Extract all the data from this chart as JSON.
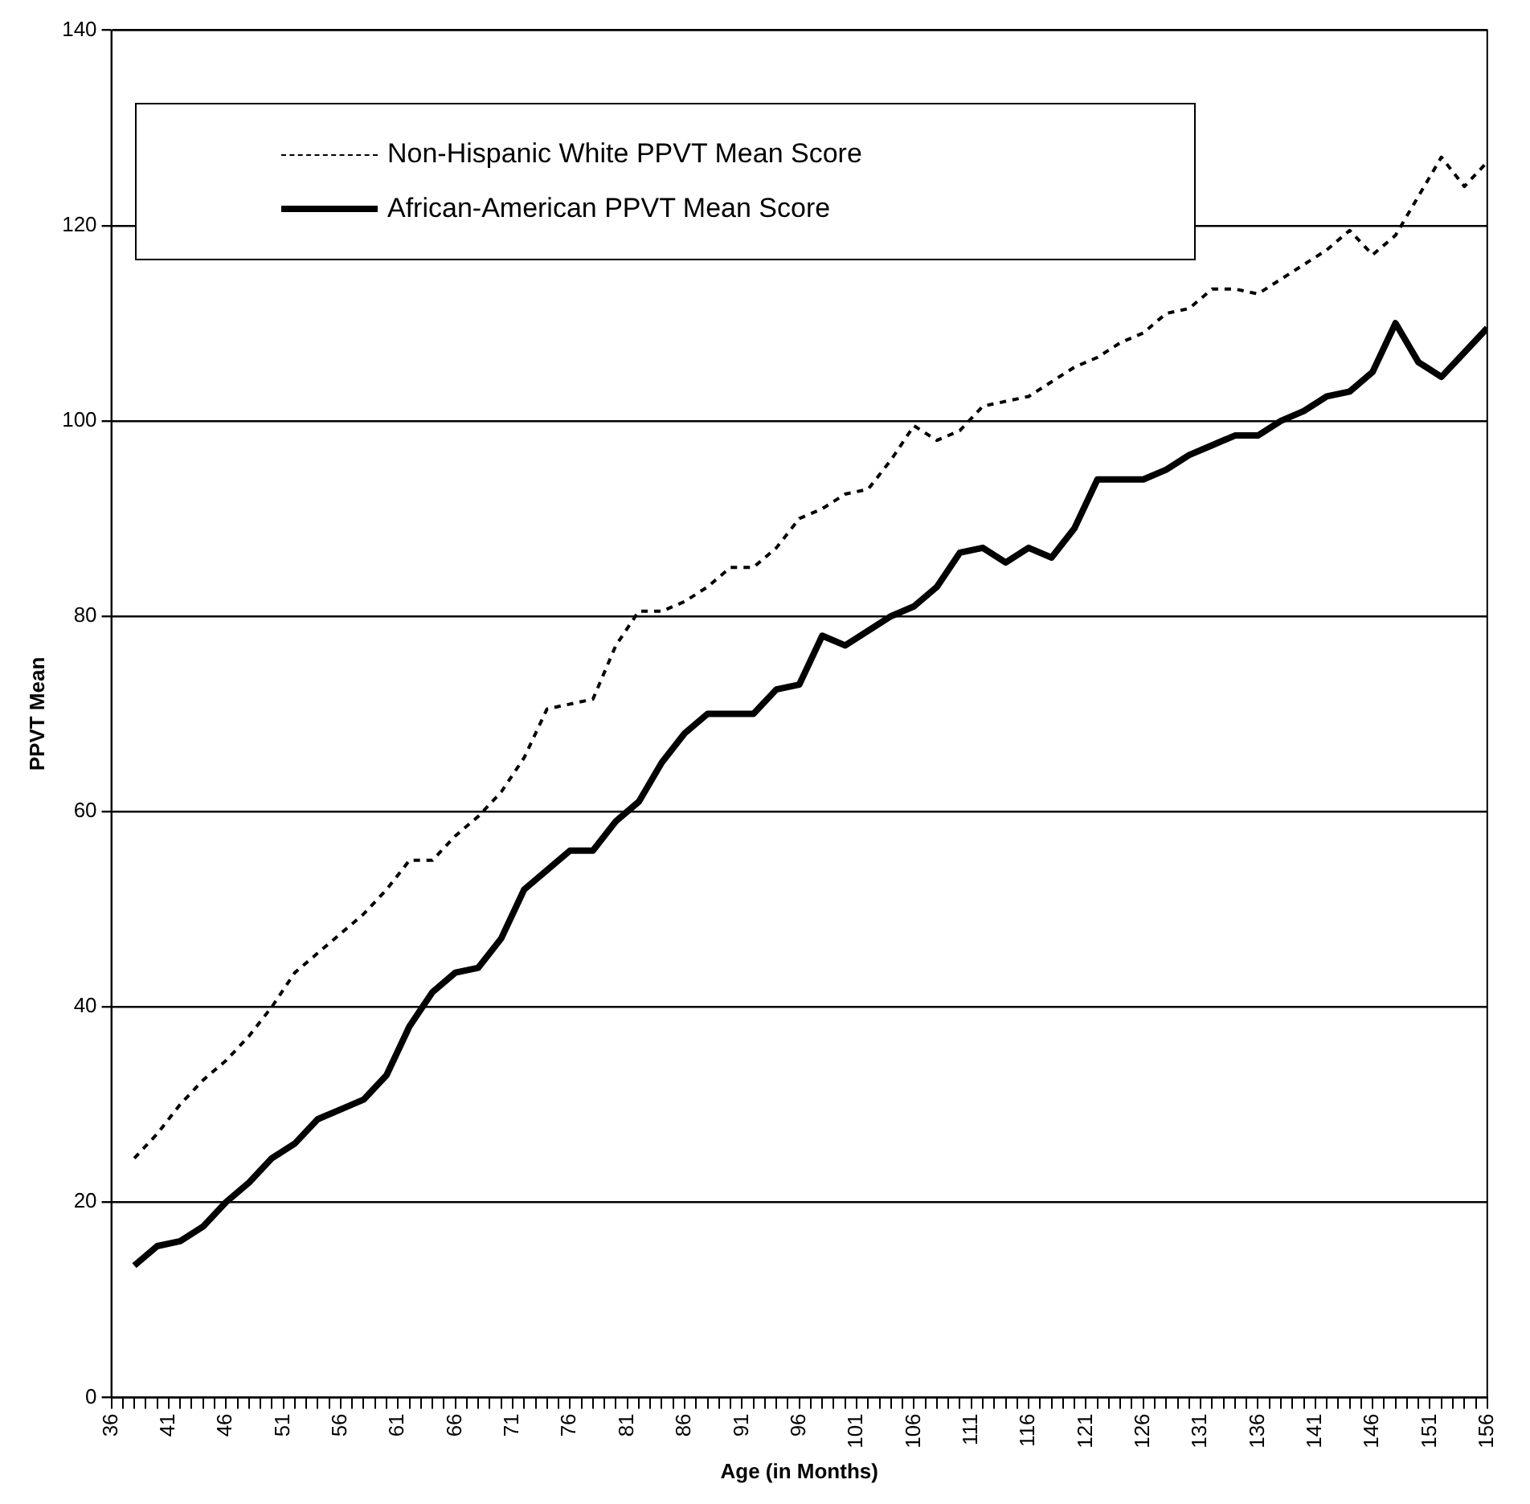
{
  "chart_data": {
    "type": "line",
    "xlabel": "Age (in Months)",
    "ylabel": "PPVT Mean",
    "xlim": [
      36,
      156
    ],
    "ylim": [
      0,
      140
    ],
    "yticks": [
      0,
      20,
      40,
      60,
      80,
      100,
      120,
      140
    ],
    "xticks": [
      36,
      {
        "value": 37,
        "label": null
      },
      {
        "value": 38,
        "label": null
      },
      {
        "value": 39,
        "label": null
      },
      {
        "value": 40,
        "label": null
      },
      41,
      {
        "value": 42,
        "label": null
      },
      {
        "value": 43,
        "label": null
      },
      {
        "value": 44,
        "label": null
      },
      {
        "value": 45,
        "label": null
      },
      46,
      {
        "value": 47,
        "label": null
      },
      {
        "value": 48,
        "label": null
      },
      {
        "value": 49,
        "label": null
      },
      {
        "value": 50,
        "label": null
      },
      51,
      {
        "value": 52,
        "label": null
      },
      {
        "value": 53,
        "label": null
      },
      {
        "value": 54,
        "label": null
      },
      {
        "value": 55,
        "label": null
      },
      56,
      {
        "value": 57,
        "label": null
      },
      {
        "value": 58,
        "label": null
      },
      {
        "value": 59,
        "label": null
      },
      {
        "value": 60,
        "label": null
      },
      61,
      {
        "value": 62,
        "label": null
      },
      {
        "value": 63,
        "label": null
      },
      {
        "value": 64,
        "label": null
      },
      {
        "value": 65,
        "label": null
      },
      66,
      {
        "value": 67,
        "label": null
      },
      {
        "value": 68,
        "label": null
      },
      {
        "value": 69,
        "label": null
      },
      {
        "value": 70,
        "label": null
      },
      71,
      {
        "value": 72,
        "label": null
      },
      {
        "value": 73,
        "label": null
      },
      {
        "value": 74,
        "label": null
      },
      {
        "value": 75,
        "label": null
      },
      76,
      {
        "value": 77,
        "label": null
      },
      {
        "value": 78,
        "label": null
      },
      {
        "value": 79,
        "label": null
      },
      {
        "value": 80,
        "label": null
      },
      81,
      {
        "value": 82,
        "label": null
      },
      {
        "value": 83,
        "label": null
      },
      {
        "value": 84,
        "label": null
      },
      {
        "value": 85,
        "label": null
      },
      86,
      {
        "value": 87,
        "label": null
      },
      {
        "value": 88,
        "label": null
      },
      {
        "value": 89,
        "label": null
      },
      {
        "value": 90,
        "label": null
      },
      91,
      {
        "value": 92,
        "label": null
      },
      {
        "value": 93,
        "label": null
      },
      {
        "value": 94,
        "label": null
      },
      {
        "value": 95,
        "label": null
      },
      96,
      {
        "value": 97,
        "label": null
      },
      {
        "value": 98,
        "label": null
      },
      {
        "value": 99,
        "label": null
      },
      {
        "value": 100,
        "label": null
      },
      101,
      {
        "value": 102,
        "label": null
      },
      {
        "value": 103,
        "label": null
      },
      {
        "value": 104,
        "label": null
      },
      {
        "value": 105,
        "label": null
      },
      106,
      {
        "value": 107,
        "label": null
      },
      {
        "value": 108,
        "label": null
      },
      {
        "value": 109,
        "label": null
      },
      {
        "value": 110,
        "label": null
      },
      111,
      {
        "value": 112,
        "label": null
      },
      {
        "value": 113,
        "label": null
      },
      {
        "value": 114,
        "label": null
      },
      {
        "value": 115,
        "label": null
      },
      116,
      {
        "value": 117,
        "label": null
      },
      {
        "value": 118,
        "label": null
      },
      {
        "value": 119,
        "label": null
      },
      {
        "value": 120,
        "label": null
      },
      121,
      {
        "value": 122,
        "label": null
      },
      {
        "value": 123,
        "label": null
      },
      {
        "value": 124,
        "label": null
      },
      {
        "value": 125,
        "label": null
      },
      126,
      {
        "value": 127,
        "label": null
      },
      {
        "value": 128,
        "label": null
      },
      {
        "value": 129,
        "label": null
      },
      {
        "value": 130,
        "label": null
      },
      131,
      {
        "value": 132,
        "label": null
      },
      {
        "value": 133,
        "label": null
      },
      {
        "value": 134,
        "label": null
      },
      {
        "value": 135,
        "label": null
      },
      136,
      {
        "value": 137,
        "label": null
      },
      {
        "value": 138,
        "label": null
      },
      {
        "value": 139,
        "label": null
      },
      {
        "value": 140,
        "label": null
      },
      141,
      {
        "value": 142,
        "label": null
      },
      {
        "value": 143,
        "label": null
      },
      {
        "value": 144,
        "label": null
      },
      {
        "value": 145,
        "label": null
      },
      146,
      {
        "value": 147,
        "label": null
      },
      {
        "value": 148,
        "label": null
      },
      {
        "value": 149,
        "label": null
      },
      {
        "value": 150,
        "label": null
      },
      151,
      {
        "value": 152,
        "label": null
      },
      {
        "value": 153,
        "label": null
      },
      {
        "value": 154,
        "label": null
      },
      {
        "value": 155,
        "label": null
      },
      156
    ],
    "x": [
      38,
      40,
      42,
      44,
      46,
      48,
      50,
      52,
      54,
      56,
      58,
      60,
      62,
      64,
      66,
      68,
      70,
      72,
      74,
      76,
      78,
      80,
      82,
      84,
      86,
      88,
      90,
      92,
      94,
      96,
      98,
      100,
      102,
      104,
      106,
      108,
      110,
      112,
      114,
      116,
      118,
      120,
      122,
      124,
      126,
      128,
      130,
      132,
      134,
      136,
      138,
      140,
      142,
      144,
      146,
      148,
      150,
      152,
      154,
      156
    ],
    "grid": "y",
    "legend": "top left",
    "marker": "none",
    "series": [
      {
        "name": "Non-Hispanic White PPVT Mean Score",
        "color": "#000000",
        "line_style": "dashed",
        "values": [
          24.5,
          27,
          30,
          32.5,
          34.5,
          37,
          40,
          43.5,
          45.5,
          47.5,
          49.5,
          52,
          55,
          55,
          57.5,
          59.5,
          62,
          65.5,
          70.5,
          71,
          71.5,
          77,
          80.5,
          80.5,
          81.5,
          83,
          85,
          85,
          87,
          90,
          91,
          92.5,
          93,
          96,
          99.5,
          98,
          99,
          101.5,
          102,
          102.5,
          104,
          105.5,
          106.5,
          108,
          109,
          111,
          111.5,
          113.5,
          113.5,
          113,
          114.5,
          116,
          117.5,
          119.5,
          117,
          119,
          123,
          127,
          124,
          126.5
        ]
      },
      {
        "name": "African-American PPVT Mean Score",
        "color": "#000000",
        "line_style": "solid",
        "values": [
          13.5,
          15.5,
          16,
          17.5,
          20,
          22,
          24.5,
          26,
          28.5,
          29.5,
          30.5,
          33,
          38,
          41.5,
          43.5,
          44,
          47,
          52,
          54,
          56,
          56,
          59,
          61,
          65,
          68,
          70,
          70,
          70,
          72.5,
          73,
          78,
          77,
          78.5,
          80,
          81,
          83,
          86.5,
          87,
          85.5,
          87,
          86,
          89,
          94,
          94,
          94,
          95,
          96.5,
          97.5,
          98.5,
          98.5,
          100,
          101,
          102.5,
          103,
          105,
          110,
          106,
          104.5,
          107,
          109.5
        ]
      }
    ]
  }
}
